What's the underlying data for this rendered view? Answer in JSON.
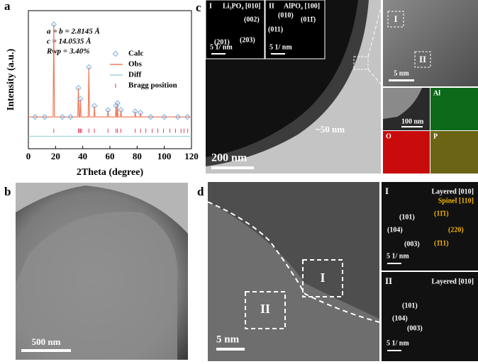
{
  "chart_data": {
    "type": "line",
    "panel_label": "a",
    "x_label": "2Theta (degree)",
    "y_label": "Intensity (a.u.)",
    "annotations": [
      "a = b = 2.8145 Å",
      "c = 14.0535 Å",
      "Rwp = 3.40%"
    ],
    "xlim": [
      0,
      120
    ],
    "xticks": [
      0,
      20,
      40,
      60,
      80,
      100,
      120
    ],
    "ylim": [
      0,
      100
    ],
    "legend": "right",
    "series": [
      {
        "name": "Calc",
        "style": "marker",
        "color": "#7aaee0",
        "x": [
          5,
          12,
          18.7,
          25,
          31,
          36.8,
          38.3,
          44.5,
          48.6,
          58.6,
          64.5,
          65.5,
          68.1,
          78.6,
          82.5,
          90,
          100,
          110,
          117
        ],
        "values": [
          23,
          23,
          90,
          23,
          23,
          44,
          36,
          59,
          31,
          28,
          31,
          33,
          28,
          27,
          26,
          23,
          23,
          23,
          23
        ]
      },
      {
        "name": "Obs",
        "style": "line",
        "color": "#ef7b5b",
        "x": [
          0,
          18.2,
          18.7,
          19.2,
          36.3,
          36.8,
          37.3,
          37.9,
          38.3,
          38.8,
          44.0,
          44.5,
          45.0,
          48.2,
          48.6,
          49.0,
          58.1,
          58.6,
          59.1,
          64.1,
          64.5,
          64.9,
          65.2,
          65.5,
          65.9,
          67.7,
          68.1,
          68.5,
          78.2,
          78.6,
          79.0,
          82.1,
          82.5,
          82.9,
          120
        ],
        "values": [
          23,
          23,
          90,
          23,
          23,
          44,
          23,
          23,
          36,
          23,
          23,
          59,
          23,
          23,
          31,
          23,
          23,
          28,
          23,
          23,
          31,
          23,
          23,
          33,
          23,
          23,
          28,
          23,
          23,
          27,
          23,
          23,
          26,
          23,
          23
        ]
      },
      {
        "name": "Diff",
        "style": "line",
        "color": "#9fd0dc",
        "x": [
          0,
          120
        ],
        "values": [
          9,
          9
        ]
      },
      {
        "name": "Bragg position",
        "style": "tick",
        "color": "#e0405a",
        "x": [
          18.7,
          36.8,
          37.6,
          38.3,
          39.2,
          44.5,
          48.6,
          58.6,
          64.5,
          65.5,
          68.1,
          78.6,
          82.5,
          86.4,
          91.1,
          95.2,
          99.4,
          104.1,
          108.2,
          112.3,
          114.5,
          117.2
        ],
        "values": [
          13,
          13,
          13,
          13,
          13,
          13,
          13,
          13,
          13,
          13,
          13,
          13,
          13,
          13,
          13,
          13,
          13,
          13,
          13,
          13,
          13,
          13
        ]
      }
    ]
  },
  "panel_b": {
    "label": "b",
    "scale_bar": "500 nm"
  },
  "panel_c": {
    "label": "c",
    "inset_1": {
      "label": "I",
      "title": "Li₃PO₄ [010]",
      "spots": [
        "(002)",
        "(201)",
        "(203)"
      ],
      "scale_bar": "5 1/ nm"
    },
    "inset_2": {
      "label": "II",
      "title": "AlPO₄ [100]",
      "spots": [
        "(010)",
        "(011̄)",
        "(011)"
      ],
      "scale_bar": "5 1/ nm"
    },
    "thickness": "~50 nm",
    "scale_bar": "200 nm",
    "hrtem": {
      "regions": [
        "I",
        "II"
      ],
      "scale_bar": "5 nm"
    },
    "eds": {
      "maps": [
        "Al",
        "O",
        "P"
      ],
      "scale_bar": "100 nm"
    }
  },
  "panel_d": {
    "label": "d",
    "regions": [
      "I",
      "II"
    ],
    "scale_bar": "5 nm",
    "fft_1": {
      "label": "I",
      "layered": "Layered [010]",
      "spinel": "Spinel [110]",
      "layered_spots": [
        "(101)",
        "(104)",
        "(003)"
      ],
      "spinel_spots": [
        "(11̄1)",
        "(220)",
        "(1̄11)"
      ],
      "scale_bar": "5 1/ nm"
    },
    "fft_2": {
      "label": "II",
      "layered": "Layered [010]",
      "spots": [
        "(101)",
        "(104)",
        "(003)"
      ],
      "scale_bar": "5 1/ nm"
    }
  }
}
